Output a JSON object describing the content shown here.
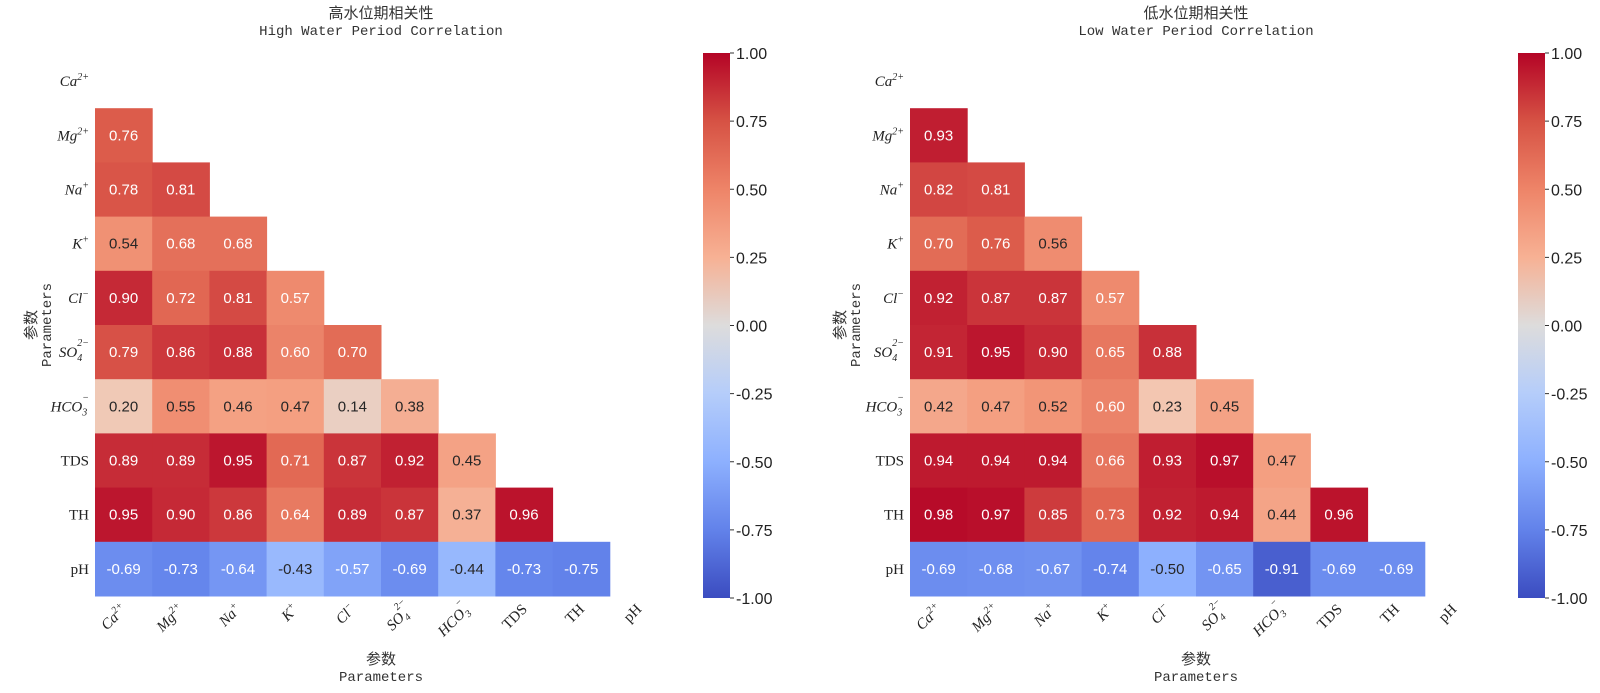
{
  "chart_data": [
    {
      "type": "heatmap",
      "title": "高水位期相关性",
      "subtitle": "High Water Period Correlation",
      "xlabel": "参数",
      "xlabel_en": "Parameters",
      "ylabel": "参数",
      "ylabel_en": "Parameters",
      "labels": [
        "Ca2+",
        "Mg2+",
        "Na+",
        "K+",
        "Cl-",
        "SO42-",
        "HCO3-",
        "TDS",
        "TH",
        "pH"
      ],
      "mask": "upper-triangle-and-diagonal",
      "colormap": "coolwarm",
      "vmin": -1.0,
      "vmax": 1.0,
      "colorbar_ticks": [
        "1.00",
        "0.75",
        "0.50",
        "0.25",
        "0.00",
        "-0.25",
        "-0.50",
        "-0.75",
        "-1.00"
      ],
      "matrix": [
        [],
        [
          0.76
        ],
        [
          0.78,
          0.81
        ],
        [
          0.54,
          0.68,
          0.68
        ],
        [
          0.9,
          0.72,
          0.81,
          0.57
        ],
        [
          0.79,
          0.86,
          0.88,
          0.6,
          0.7
        ],
        [
          0.2,
          0.55,
          0.46,
          0.47,
          0.14,
          0.38
        ],
        [
          0.89,
          0.89,
          0.95,
          0.71,
          0.87,
          0.92,
          0.45
        ],
        [
          0.95,
          0.9,
          0.86,
          0.64,
          0.89,
          0.87,
          0.37,
          0.96
        ],
        [
          -0.69,
          -0.73,
          -0.64,
          -0.43,
          -0.57,
          -0.69,
          -0.44,
          -0.73,
          -0.75
        ]
      ]
    },
    {
      "type": "heatmap",
      "title": "低水位期相关性",
      "subtitle": "Low Water Period Correlation",
      "xlabel": "参数",
      "xlabel_en": "Parameters",
      "ylabel": "参数",
      "ylabel_en": "Parameters",
      "labels": [
        "Ca2+",
        "Mg2+",
        "Na+",
        "K+",
        "Cl-",
        "SO42-",
        "HCO3-",
        "TDS",
        "TH",
        "pH"
      ],
      "mask": "upper-triangle-and-diagonal",
      "colormap": "coolwarm",
      "vmin": -1.0,
      "vmax": 1.0,
      "colorbar_ticks": [
        "1.00",
        "0.75",
        "0.50",
        "0.25",
        "0.00",
        "-0.25",
        "-0.50",
        "-0.75",
        "-1.00"
      ],
      "matrix": [
        [],
        [
          0.93
        ],
        [
          0.82,
          0.81
        ],
        [
          0.7,
          0.76,
          0.56
        ],
        [
          0.92,
          0.87,
          0.87,
          0.57
        ],
        [
          0.91,
          0.95,
          0.9,
          0.65,
          0.88
        ],
        [
          0.42,
          0.47,
          0.52,
          0.6,
          0.23,
          0.45
        ],
        [
          0.94,
          0.94,
          0.94,
          0.66,
          0.93,
          0.97,
          0.47
        ],
        [
          0.98,
          0.97,
          0.85,
          0.73,
          0.92,
          0.94,
          0.44,
          0.96
        ],
        [
          -0.69,
          -0.68,
          -0.67,
          -0.74,
          -0.5,
          -0.65,
          -0.91,
          -0.69,
          -0.69
        ]
      ]
    }
  ],
  "label_parts": {
    "Ca2+": {
      "base": "Ca",
      "sup": "2+",
      "sub": "",
      "italic": true
    },
    "Mg2+": {
      "base": "Mg",
      "sup": "2+",
      "sub": "",
      "italic": true
    },
    "Na+": {
      "base": "Na",
      "sup": "+",
      "sub": "",
      "italic": true
    },
    "K+": {
      "base": "K",
      "sup": "+",
      "sub": "",
      "italic": true
    },
    "Cl-": {
      "base": "Cl",
      "sup": "−",
      "sub": "",
      "italic": true
    },
    "SO42-": {
      "base": "SO",
      "sup": "2−",
      "sub": "4",
      "italic": true
    },
    "HCO3-": {
      "base": "HCO",
      "sup": "−",
      "sub": "3",
      "italic": true
    },
    "TDS": {
      "base": "TDS",
      "sup": "",
      "sub": "",
      "italic": false
    },
    "TH": {
      "base": "TH",
      "sup": "",
      "sub": "",
      "italic": false
    },
    "pH": {
      "base": "pH",
      "sup": "",
      "sub": "",
      "italic": false
    }
  }
}
